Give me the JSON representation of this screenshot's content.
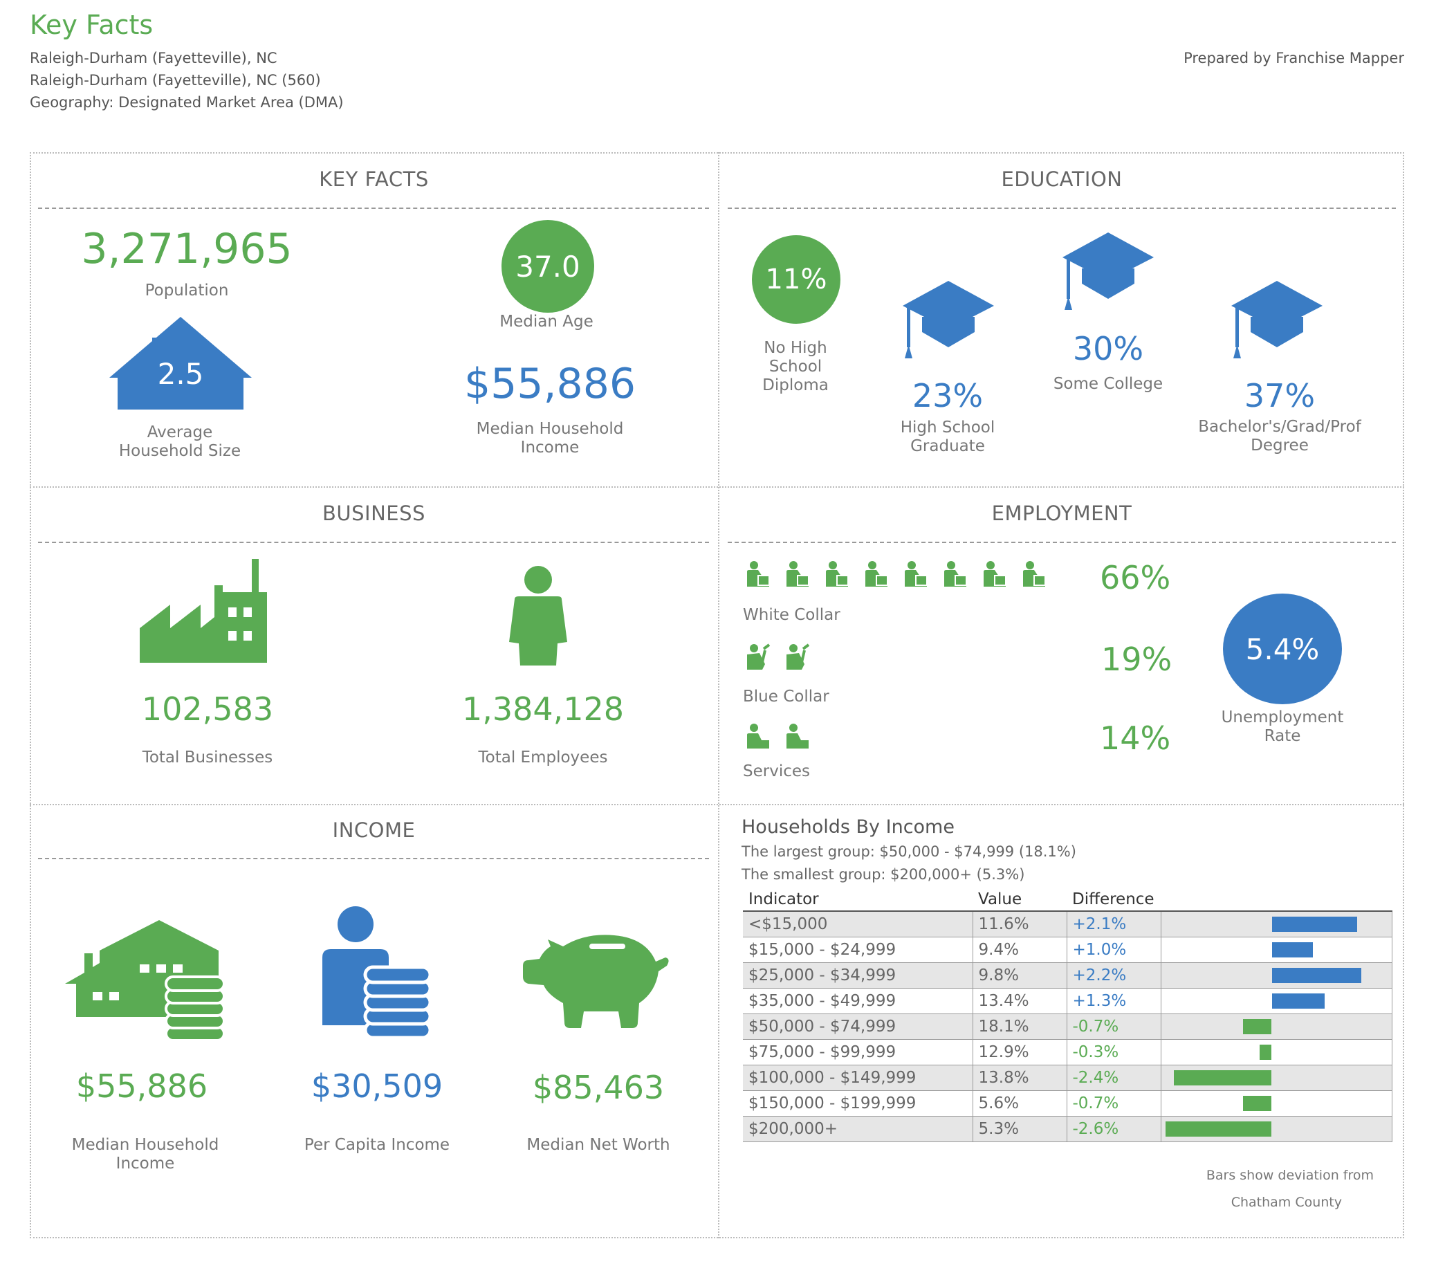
{
  "header": {
    "title": "Key Facts",
    "lines": [
      "Raleigh-Durham (Fayetteville), NC",
      "Raleigh-Durham (Fayetteville), NC (560)",
      "Geography: Designated Market Area (DMA)"
    ],
    "prepared_by": "Prepared by Franchise Mapper"
  },
  "key_facts": {
    "heading": "KEY FACTS",
    "population": "3,271,965",
    "population_label": "Population",
    "median_age": "37.0",
    "median_age_label": "Median Age",
    "household_size": "2.5",
    "household_size_label_1": "Average",
    "household_size_label_2": "Household Size",
    "median_income": "$55,886",
    "median_income_label_1": "Median Household",
    "median_income_label_2": "Income"
  },
  "education": {
    "heading": "EDUCATION",
    "no_hs": "11%",
    "no_hs_label": [
      "No High",
      "School",
      "Diploma"
    ],
    "hs": "23%",
    "hs_label": [
      "High School",
      "Graduate"
    ],
    "some_college": "30%",
    "some_college_label": "Some College",
    "bachelors": "37%",
    "bachelors_label": [
      "Bachelor's/Grad/Prof",
      "Degree"
    ]
  },
  "business": {
    "heading": "BUSINESS",
    "total_businesses": "102,583",
    "total_businesses_label": "Total Businesses",
    "total_employees": "1,384,128",
    "total_employees_label": "Total Employees"
  },
  "employment": {
    "heading": "EMPLOYMENT",
    "white_collar": "66%",
    "white_collar_label": "White Collar",
    "white_collar_icons": 8,
    "blue_collar": "19%",
    "blue_collar_label": "Blue Collar",
    "blue_collar_icons": 2,
    "services": "14%",
    "services_label": "Services",
    "services_icons": 2,
    "unemployment": "5.4%",
    "unemployment_label_1": "Unemployment",
    "unemployment_label_2": "Rate"
  },
  "income": {
    "heading": "INCOME",
    "median_household": "$55,886",
    "median_household_label_1": "Median Household",
    "median_household_label_2": "Income",
    "per_capita": "$30,509",
    "per_capita_label": "Per Capita Income",
    "net_worth": "$85,463",
    "net_worth_label": "Median Net Worth"
  },
  "households_by_income": {
    "title": "Households By Income",
    "largest": "The largest group: $50,000 - $74,999 (18.1%)",
    "smallest": "The smallest group: $200,000+ (5.3%)",
    "columns": [
      "Indicator",
      "Value",
      "Difference"
    ],
    "footnote_1": "Bars show deviation from",
    "footnote_2": "Chatham County",
    "colors": {
      "positive": "#3a7cc4",
      "negative": "#5aab53"
    }
  },
  "chart_data": {
    "type": "bar",
    "categories": [
      "<$15,000",
      "$15,000 - $24,999",
      "$25,000 - $34,999",
      "$35,000 - $49,999",
      "$50,000 - $74,999",
      "$75,000 - $99,999",
      "$100,000 - $149,999",
      "$150,000 - $199,999",
      "$200,000+"
    ],
    "value_labels": [
      "11.6%",
      "9.4%",
      "9.8%",
      "13.4%",
      "18.1%",
      "12.9%",
      "13.8%",
      "5.6%",
      "5.3%"
    ],
    "difference_labels": [
      "+2.1%",
      "+1.0%",
      "+2.2%",
      "+1.3%",
      "-0.7%",
      "-0.3%",
      "-2.4%",
      "-0.7%",
      "-2.6%"
    ],
    "values": [
      2.1,
      1.0,
      2.2,
      1.3,
      -0.7,
      -0.3,
      -2.4,
      -0.7,
      -2.6
    ]
  }
}
